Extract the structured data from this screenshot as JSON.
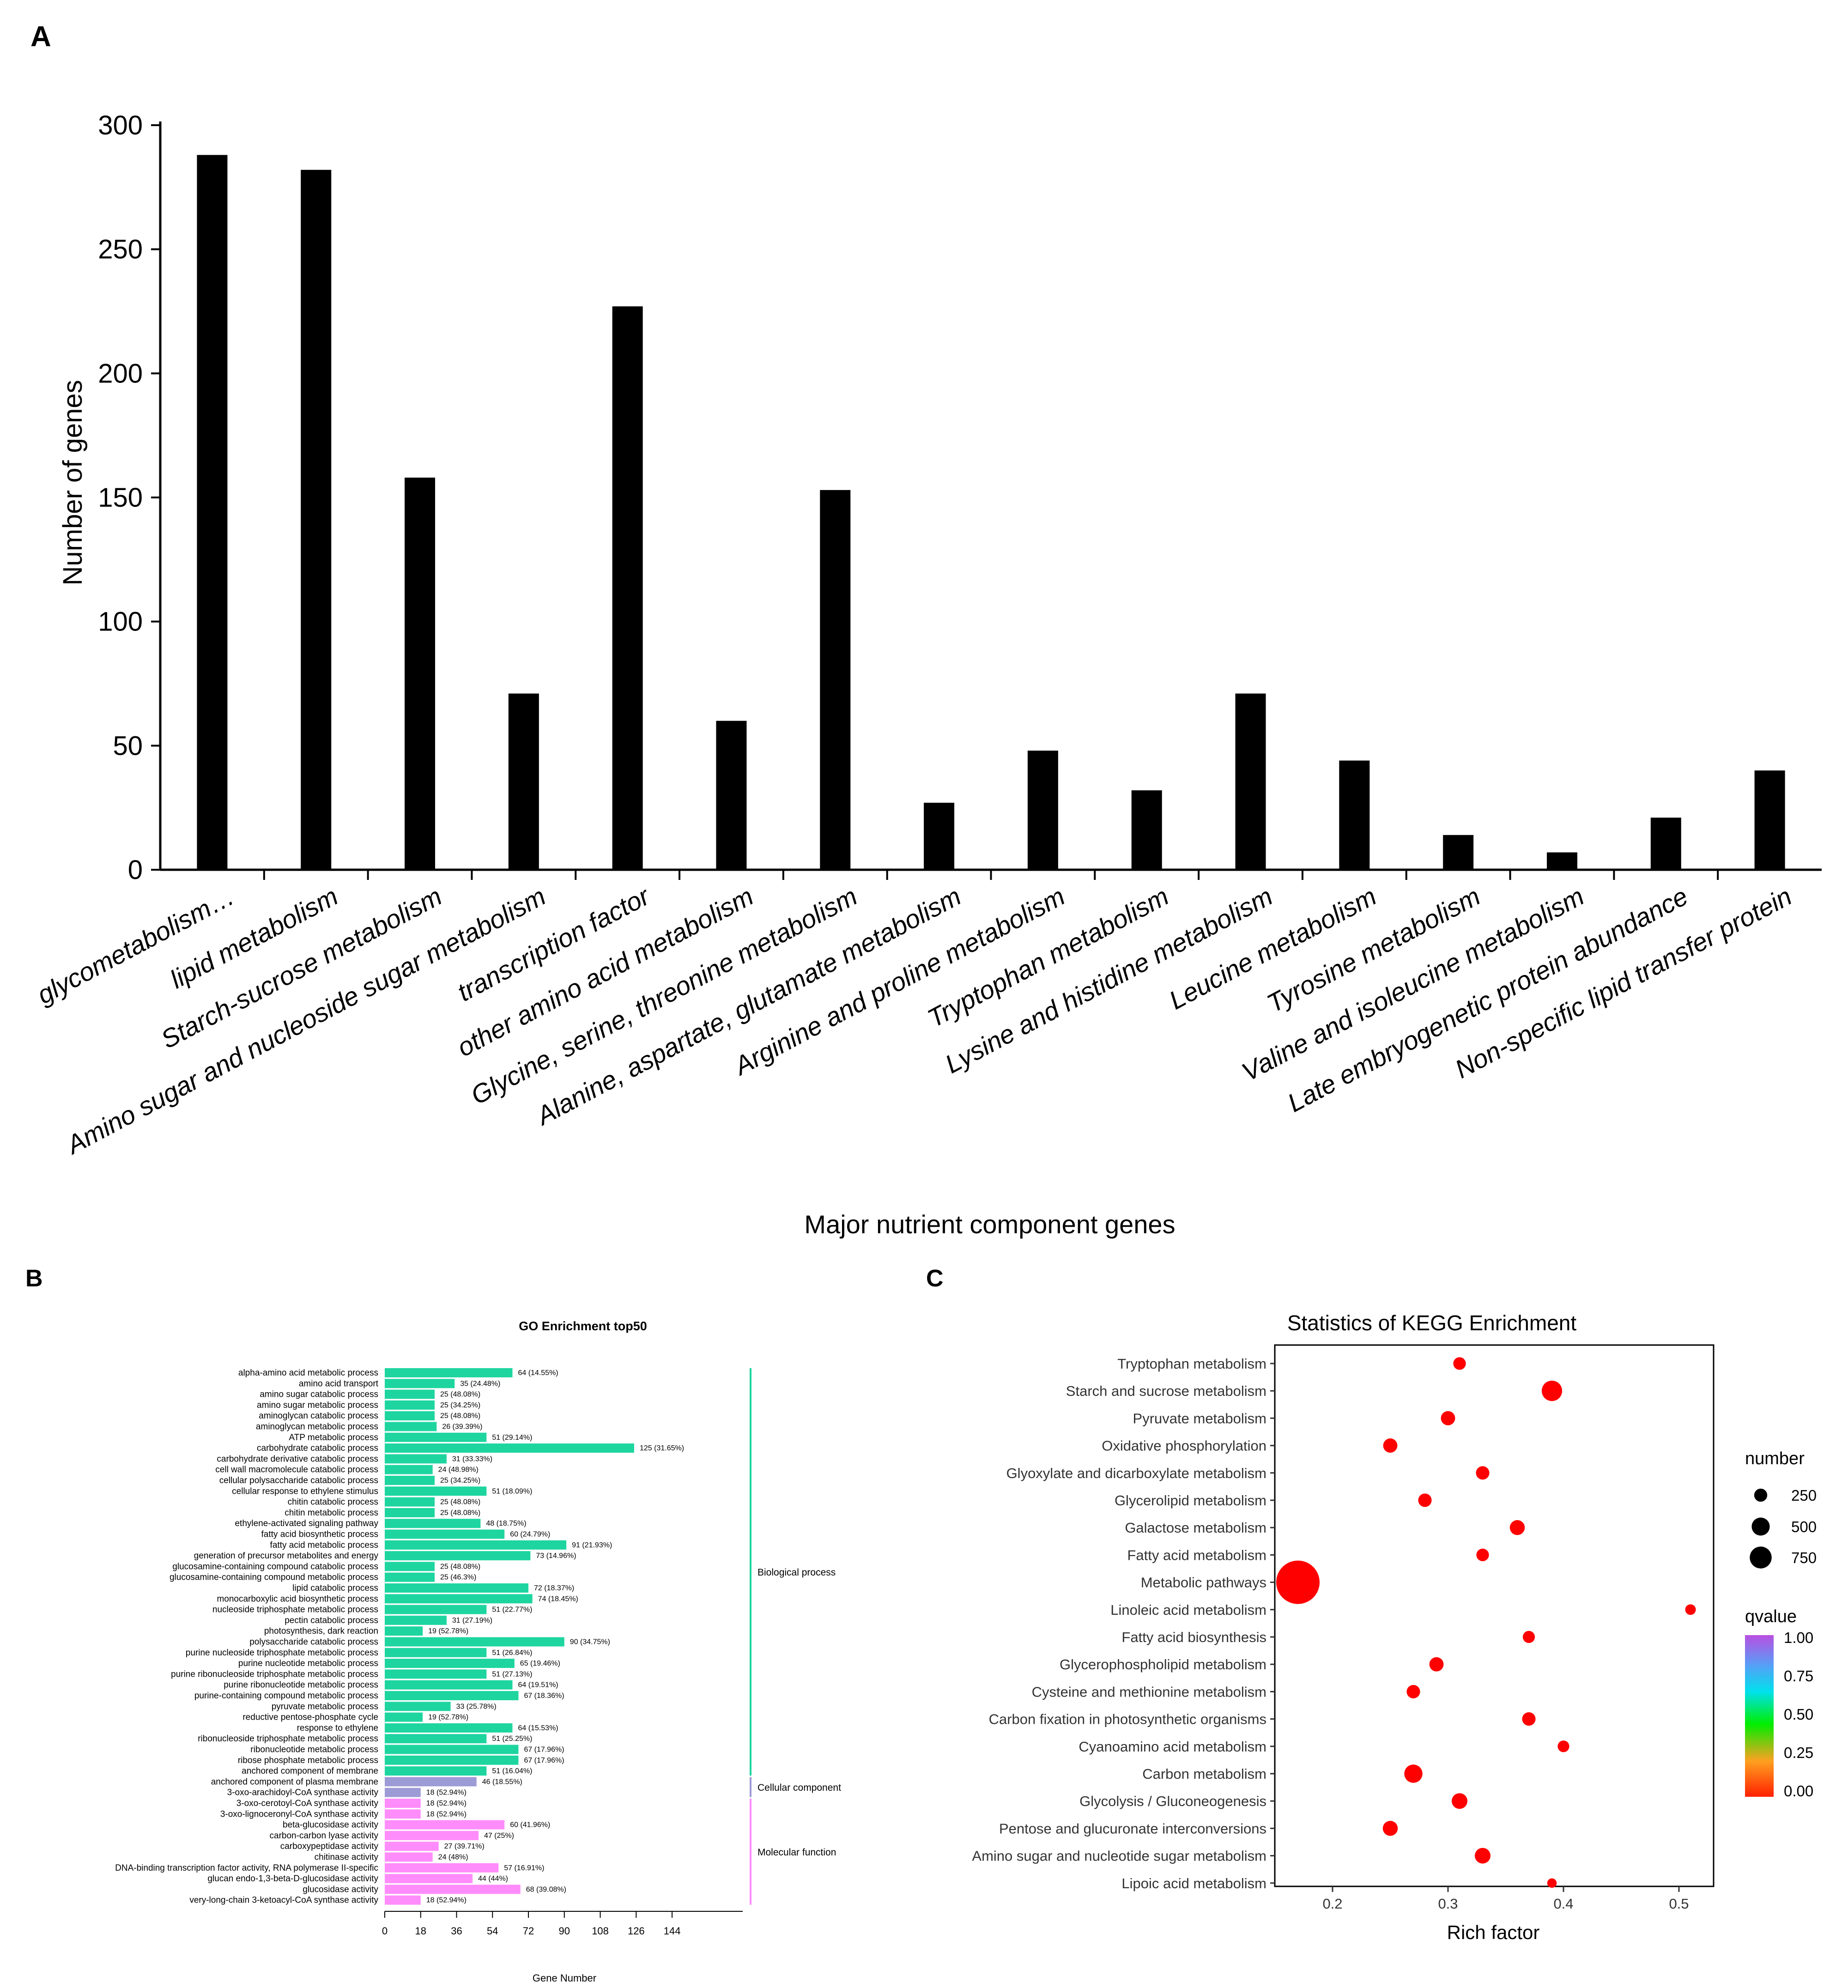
{
  "panels": {
    "a": "A",
    "b": "B",
    "c": "C"
  },
  "chart_data": [
    {
      "id": "panelA",
      "type": "bar",
      "title": "",
      "xlabel": "Major nutrient component genes",
      "ylabel": "Number of genes",
      "ylim": [
        0,
        300
      ],
      "yticks": [
        0,
        50,
        100,
        150,
        200,
        250,
        300
      ],
      "grid": false,
      "color": "#000000",
      "categories": [
        "glycometabolism…",
        "lipid metabolism",
        "Starch-sucrose metabolism",
        "Amino sugar and nucleoside sugar metabolism",
        "transcription factor",
        "other amino acid metabolism",
        "Glycine, serine, threonine metabolism",
        "Alanine, aspartate, glutamate metabolism",
        "Arginine and proline metabolism",
        "Tryptophan metabolism",
        "Lysine and histidine metabolism",
        "Leucine metabolism",
        "Tyrosine metabolism",
        "Valine and isoleucine metabolism",
        "Late embryogenetic protein abundance",
        "Non-specific lipid transfer protein"
      ],
      "values": [
        288,
        282,
        158,
        71,
        227,
        60,
        153,
        27,
        48,
        32,
        71,
        44,
        14,
        7,
        21,
        40
      ]
    },
    {
      "id": "panelB",
      "type": "bar",
      "orientation": "horizontal",
      "title": "GO Enrichment top50",
      "xlabel": "Gene Number",
      "xlim": [
        0,
        150
      ],
      "xticks": [
        0,
        18,
        36,
        54,
        72,
        90,
        108,
        126,
        144
      ],
      "colors": {
        "Biological process": "#1ed5a0",
        "Cellular component": "#9d9bd6",
        "Molecular function": "#ff8cfb"
      },
      "groups": [
        {
          "name": "Biological process",
          "start": 0,
          "end": 37
        },
        {
          "name": "Cellular component",
          "start": 38,
          "end": 39
        },
        {
          "name": "Molecular function",
          "start": 40,
          "end": 49
        }
      ],
      "categories": [
        "alpha-amino acid metabolic process",
        "amino acid transport",
        "amino sugar catabolic process",
        "amino sugar metabolic process",
        "aminoglycan catabolic process",
        "aminoglycan metabolic process",
        "ATP metabolic process",
        "carbohydrate catabolic process",
        "carbohydrate derivative catabolic process",
        "cell wall macromolecule catabolic process",
        "cellular polysaccharide catabolic process",
        "cellular response to ethylene stimulus",
        "chitin catabolic process",
        "chitin metabolic process",
        "ethylene-activated signaling pathway",
        "fatty acid biosynthetic process",
        "fatty acid metabolic process",
        "generation of precursor metabolites and energy",
        "glucosamine-containing compound catabolic process",
        "glucosamine-containing compound metabolic process",
        "lipid catabolic process",
        "monocarboxylic acid biosynthetic process",
        "nucleoside triphosphate metabolic process",
        "pectin catabolic process",
        "photosynthesis, dark reaction",
        "polysaccharide catabolic process",
        "purine nucleoside triphosphate metabolic process",
        "purine nucleotide metabolic process",
        "purine ribonucleoside triphosphate metabolic process",
        "purine ribonucleotide metabolic process",
        "purine-containing compound metabolic process",
        "pyruvate metabolic process",
        "reductive pentose-phosphate cycle",
        "response to ethylene",
        "ribonucleoside triphosphate metabolic process",
        "ribonucleotide metabolic process",
        "ribose phosphate metabolic process",
        "anchored component of membrane",
        "anchored component of plasma membrane",
        "3-oxo-arachidoyl-CoA synthase activity",
        "3-oxo-cerotoyl-CoA synthase activity",
        "3-oxo-lignoceronyl-CoA synthase activity",
        "beta-glucosidase activity",
        "carbon-carbon lyase activity",
        "carboxypeptidase activity",
        "chitinase activity",
        "DNA-binding transcription factor activity, RNA polymerase II-specific",
        "glucan endo-1,3-beta-D-glucosidase activity",
        "glucosidase activity",
        "very-long-chain 3-ketoacyl-CoA synthase activity"
      ],
      "values": [
        64,
        35,
        25,
        25,
        25,
        26,
        51,
        125,
        31,
        24,
        25,
        51,
        25,
        25,
        48,
        60,
        91,
        73,
        25,
        25,
        72,
        74,
        51,
        31,
        19,
        90,
        51,
        65,
        51,
        64,
        67,
        33,
        19,
        64,
        51,
        67,
        67,
        51,
        46,
        18,
        18,
        18,
        60,
        47,
        27,
        24,
        57,
        44,
        68,
        18
      ],
      "labels": [
        "64 (14.55%)",
        "35 (24.48%)",
        "25 (48.08%)",
        "25 (34.25%)",
        "25 (48.08%)",
        "26 (39.39%)",
        "51 (29.14%)",
        "125 (31.65%)",
        "31 (33.33%)",
        "24 (48.98%)",
        "25 (34.25%)",
        "51 (18.09%)",
        "25 (48.08%)",
        "25 (48.08%)",
        "48 (18.75%)",
        "60 (24.79%)",
        "91 (21.93%)",
        "73 (14.96%)",
        "25 (48.08%)",
        "25 (46.3%)",
        "72 (18.37%)",
        "74 (18.45%)",
        "51 (22.77%)",
        "31 (27.19%)",
        "19 (52.78%)",
        "90 (34.75%)",
        "51 (26.84%)",
        "65 (19.46%)",
        "51 (27.13%)",
        "64 (19.51%)",
        "67 (18.36%)",
        "33 (25.78%)",
        "19 (52.78%)",
        "64 (15.53%)",
        "51 (25.25%)",
        "67 (17.96%)",
        "67 (17.96%)",
        "51 (16.04%)",
        "46 (18.55%)",
        "18 (52.94%)",
        "18 (52.94%)",
        "18 (52.94%)",
        "60 (41.96%)",
        "47 (25%)",
        "27 (39.71%)",
        "24 (48%)",
        "57 (16.91%)",
        "44 (44%)",
        "68 (39.08%)",
        "18 (52.94%)"
      ]
    },
    {
      "id": "panelC",
      "type": "scatter",
      "title": "Statistics of KEGG Enrichment",
      "xlabel": "Rich factor",
      "xlim": [
        0.15,
        0.53
      ],
      "xticks": [
        0.2,
        0.3,
        0.4,
        0.5
      ],
      "xticklabels": [
        "0.2",
        "0.3",
        "0.4",
        "0.5"
      ],
      "point_color": "#ff0000",
      "categories": [
        "Tryptophan metabolism",
        "Starch and sucrose metabolism",
        "Pyruvate metabolism",
        "Oxidative phosphorylation",
        "Glyoxylate and dicarboxylate metabolism",
        "Glycerolipid metabolism",
        "Galactose metabolism",
        "Fatty acid metabolism",
        "Metabolic pathways",
        "Linoleic acid metabolism",
        "Fatty acid biosynthesis",
        "Glycerophospholipid metabolism",
        "Cysteine and methionine metabolism",
        "Carbon fixation in photosynthetic organisms",
        "Cyanoamino acid metabolism",
        "Carbon metabolism",
        "Glycolysis / Gluconeogenesis",
        "Pentose and glucuronate interconversions",
        "Amino sugar and nucleotide sugar metabolism",
        "Lipoic acid metabolism"
      ],
      "points": [
        {
          "x": 0.31,
          "number": 60,
          "qvalue": 0.0
        },
        {
          "x": 0.39,
          "number": 180,
          "qvalue": 0.0
        },
        {
          "x": 0.3,
          "number": 80,
          "qvalue": 0.0
        },
        {
          "x": 0.25,
          "number": 80,
          "qvalue": 0.0
        },
        {
          "x": 0.33,
          "number": 70,
          "qvalue": 0.0
        },
        {
          "x": 0.28,
          "number": 70,
          "qvalue": 0.0
        },
        {
          "x": 0.36,
          "number": 90,
          "qvalue": 0.0
        },
        {
          "x": 0.33,
          "number": 60,
          "qvalue": 0.0
        },
        {
          "x": 0.17,
          "number": 900,
          "qvalue": 0.0
        },
        {
          "x": 0.51,
          "number": 40,
          "qvalue": 0.0
        },
        {
          "x": 0.37,
          "number": 55,
          "qvalue": 0.0
        },
        {
          "x": 0.29,
          "number": 80,
          "qvalue": 0.0
        },
        {
          "x": 0.27,
          "number": 70,
          "qvalue": 0.0
        },
        {
          "x": 0.37,
          "number": 70,
          "qvalue": 0.0
        },
        {
          "x": 0.4,
          "number": 50,
          "qvalue": 0.0
        },
        {
          "x": 0.27,
          "number": 140,
          "qvalue": 0.0
        },
        {
          "x": 0.31,
          "number": 100,
          "qvalue": 0.0
        },
        {
          "x": 0.25,
          "number": 90,
          "qvalue": 0.0
        },
        {
          "x": 0.33,
          "number": 100,
          "qvalue": 0.0
        },
        {
          "x": 0.39,
          "number": 30,
          "qvalue": 0.0
        }
      ],
      "legend_size": {
        "title": "number",
        "values": [
          250,
          500,
          750
        ],
        "labels": [
          "250",
          "500",
          "750"
        ]
      },
      "legend_color": {
        "title": "qvalue",
        "ticks": [
          "1.00",
          "0.75",
          "0.50",
          "0.25",
          "0.00"
        ],
        "stops": [
          "#b94fe0",
          "#5a9cf7",
          "#00e1ec",
          "#00ee00",
          "#ffa020",
          "#ff2000"
        ]
      }
    }
  ]
}
